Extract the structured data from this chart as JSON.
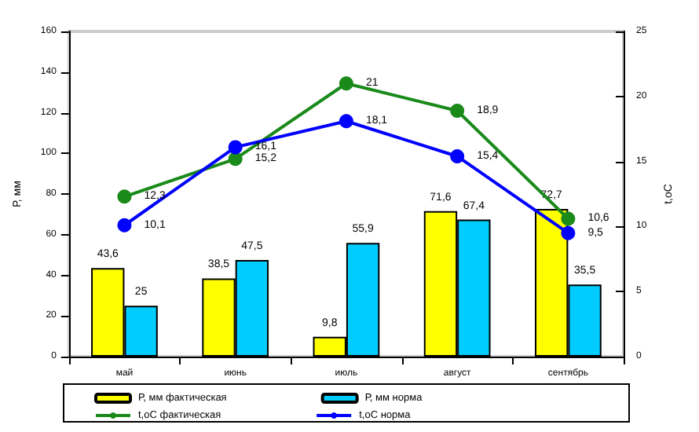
{
  "chart_data": {
    "type": "bar",
    "categories": [
      "май",
      "июнь",
      "июль",
      "август",
      "сентябрь"
    ],
    "ylabel": "Р, мм",
    "y2label": "t,оС",
    "ylim": [
      0,
      160
    ],
    "yticks": [
      0,
      20,
      40,
      60,
      80,
      100,
      120,
      140,
      160
    ],
    "y2lim": [
      0,
      25
    ],
    "y2ticks": [
      0,
      5,
      10,
      15,
      20,
      25
    ],
    "grid": false,
    "legend": "bottom",
    "marker": "circle",
    "series": [
      {
        "name": "Р, мм фактическая",
        "color": "#ffff00",
        "values": [
          43.6,
          38.5,
          9.8,
          71.6,
          72.7
        ],
        "value_labels": [
          "43,6",
          "38,5",
          "9,8",
          "71,6",
          "72,7"
        ]
      },
      {
        "name": "Р, мм норма",
        "color": "#00ccff",
        "values": [
          25,
          47.5,
          55.9,
          67.4,
          35.5
        ],
        "value_labels": [
          "25",
          "47,5",
          "55,9",
          "67,4",
          "35,5"
        ]
      },
      {
        "name": "t,оС фактическая",
        "type": "line",
        "axis": "y2",
        "color": "#1a8a1a",
        "values": [
          12.3,
          15.2,
          21,
          18.9,
          10.6
        ],
        "value_labels": [
          "12,3",
          "15,2",
          "21",
          "18,9",
          "10,6"
        ]
      },
      {
        "name": "t,оС норма",
        "type": "line",
        "axis": "y2",
        "color": "#0000ff",
        "values": [
          10.1,
          16.1,
          18.1,
          15.4,
          9.5
        ],
        "value_labels": [
          "10,1",
          "16,1",
          "18,1",
          "15,4",
          "9,5"
        ]
      }
    ]
  }
}
